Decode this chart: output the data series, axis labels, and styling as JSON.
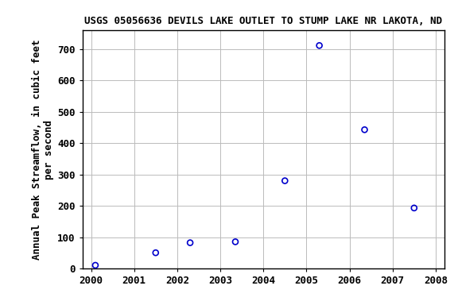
{
  "title": "USGS 05056636 DEVILS LAKE OUTLET TO STUMP LAKE NR LAKOTA, ND",
  "ylabel_line1": "Annual Peak Streamflow, in cubic feet",
  "ylabel_line2": "per second",
  "x_values": [
    2000.1,
    2001.5,
    2002.3,
    2003.35,
    2004.5,
    2005.3,
    2006.35,
    2007.5
  ],
  "y_values": [
    10,
    50,
    82,
    85,
    280,
    712,
    443,
    193
  ],
  "xlim": [
    1999.8,
    2008.2
  ],
  "ylim": [
    0,
    760
  ],
  "yticks": [
    0,
    100,
    200,
    300,
    400,
    500,
    600,
    700
  ],
  "xticks": [
    2000,
    2001,
    2002,
    2003,
    2004,
    2005,
    2006,
    2007,
    2008
  ],
  "marker_color": "#0000cc",
  "marker_size": 5,
  "marker_style": "o",
  "grid_color": "#bbbbbb",
  "bg_color": "#ffffff",
  "title_fontsize": 9,
  "label_fontsize": 9,
  "tick_fontsize": 9
}
